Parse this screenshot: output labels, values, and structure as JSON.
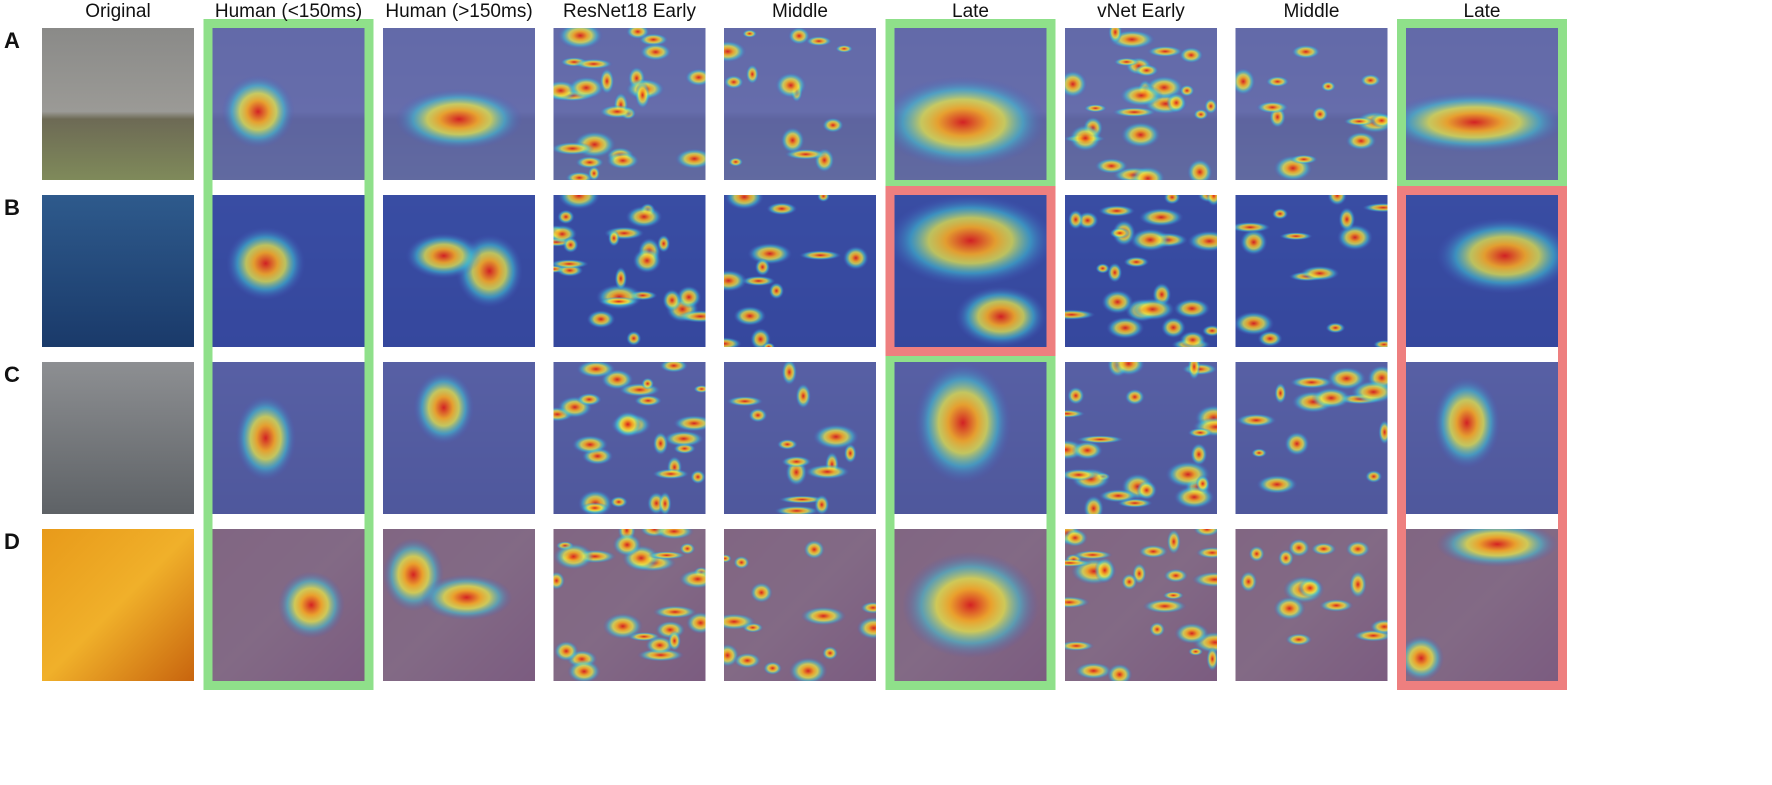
{
  "columns": [
    "Original",
    "Human (<150ms)",
    "Human (>150ms)",
    "ResNet18 Early",
    "Middle",
    "Late",
    "vNet Early",
    "Middle",
    "Late"
  ],
  "rows": [
    "A",
    "B",
    "C",
    "D"
  ]
}
